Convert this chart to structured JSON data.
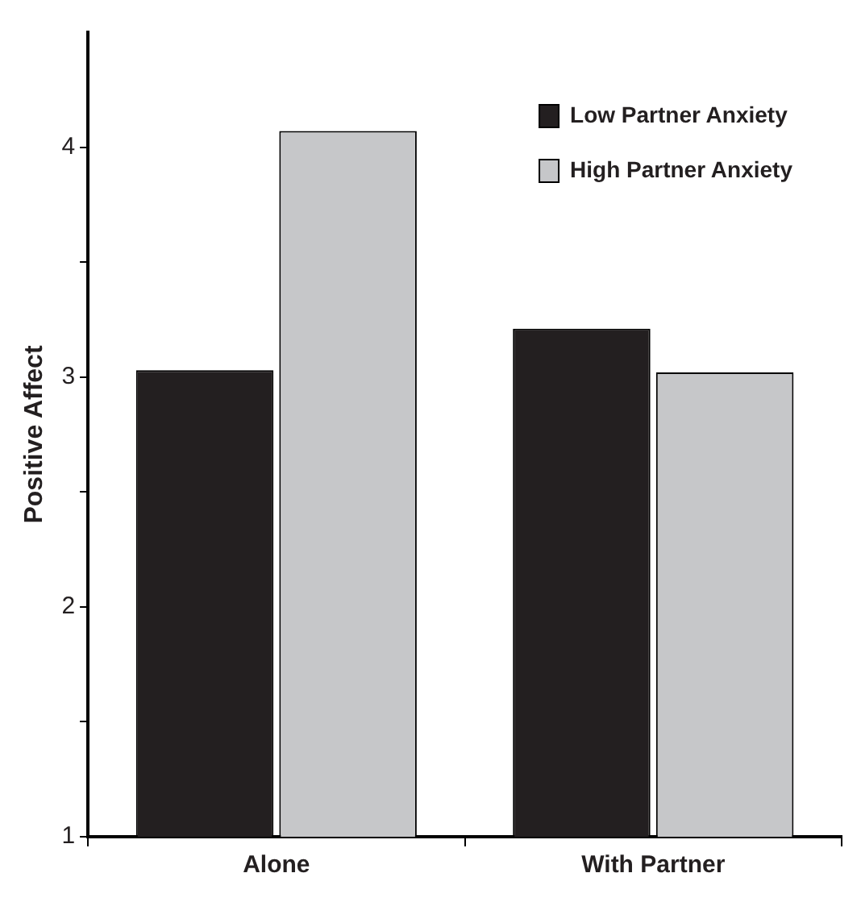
{
  "chart_data": {
    "type": "bar",
    "ylabel": "Positive Affect",
    "categories": [
      "Alone",
      "With Partner"
    ],
    "series": [
      {
        "name": "Low Partner Anxiety",
        "color": "#231f20",
        "values": [
          3.03,
          3.21
        ]
      },
      {
        "name": "High Partner Anxiety",
        "color": "#c6c7c9",
        "values": [
          4.07,
          3.02
        ]
      }
    ],
    "ylim": [
      1,
      4.5
    ],
    "yticks": [
      1,
      {
        "value": 1.5,
        "label": null
      },
      2,
      {
        "value": 2.5,
        "label": null
      },
      3,
      {
        "value": 3.5,
        "label": null
      },
      4
    ],
    "legend": "top right"
  }
}
